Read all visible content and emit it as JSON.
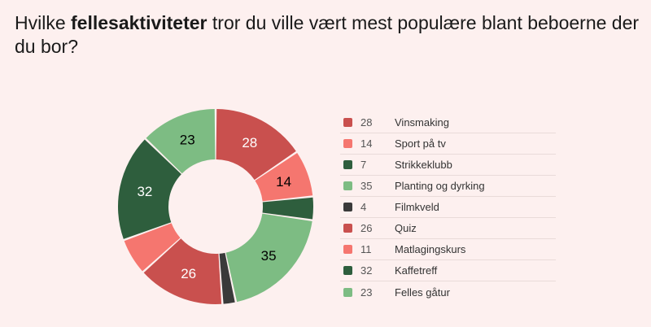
{
  "question": {
    "prefix": "Hvilke ",
    "bold": "fellesaktiviteter",
    "suffix": " tror du ville vært mest populære blant beboerne der du bor?"
  },
  "chart_data": {
    "type": "pie",
    "categories": [
      "Vinsmaking",
      "Sport på tv",
      "Strikkeklubb",
      "Planting og dyrking",
      "Filmkveld",
      "Quiz",
      "Matlagingskurs",
      "Kaffetreff",
      "Felles gåtur"
    ],
    "values": [
      28,
      14,
      7,
      35,
      4,
      26,
      11,
      32,
      23
    ],
    "colors": [
      "#c9504e",
      "#f5766f",
      "#2e5e3d",
      "#7dbc83",
      "#3a3a3a",
      "#c9504e",
      "#f5766f",
      "#2e5e3d",
      "#7dbc83"
    ],
    "label_colors": [
      "#ffffff",
      "#000000",
      "#ffffff",
      "#000000",
      "#ffffff",
      "#ffffff",
      "#000000",
      "#ffffff",
      "#000000"
    ],
    "shown_labels": [
      true,
      true,
      false,
      true,
      false,
      true,
      false,
      true,
      true
    ],
    "legend_position": "right"
  }
}
